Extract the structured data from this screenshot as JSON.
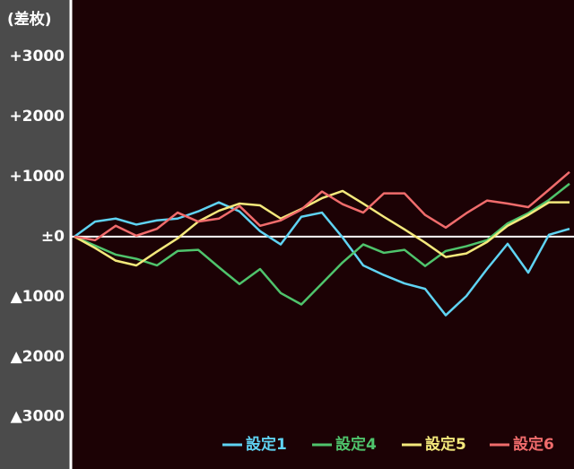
{
  "chart_data": {
    "type": "line",
    "title": "(差枚)",
    "x": [
      0,
      1,
      2,
      3,
      4,
      5,
      6,
      7,
      8,
      9,
      10,
      11,
      12,
      13,
      14,
      15,
      16,
      17,
      18,
      19,
      20,
      21,
      22,
      23,
      24
    ],
    "xlim": [
      0,
      24
    ],
    "ylim": [
      -3870,
      3940
    ],
    "yticks": [
      {
        "value": 3000,
        "label": "+3000"
      },
      {
        "value": 2000,
        "label": "+2000"
      },
      {
        "value": 1000,
        "label": "+1000"
      },
      {
        "value": 0,
        "label": "±0"
      },
      {
        "value": -1000,
        "label": "▲1000"
      },
      {
        "value": -2000,
        "label": "▲2000"
      },
      {
        "value": -3000,
        "label": "▲3000"
      }
    ],
    "series": [
      {
        "name": "設定1",
        "color": "#5fd3f3",
        "values": [
          0,
          250,
          300,
          200,
          270,
          300,
          420,
          570,
          420,
          90,
          -130,
          330,
          400,
          -15,
          -480,
          -640,
          -780,
          -870,
          -1310,
          -990,
          -540,
          -120,
          -600,
          30,
          130
        ]
      },
      {
        "name": "設定4",
        "color": "#4fc46c",
        "values": [
          0,
          -150,
          -300,
          -370,
          -480,
          -240,
          -220,
          -510,
          -790,
          -540,
          -940,
          -1130,
          -780,
          -430,
          -130,
          -270,
          -220,
          -490,
          -240,
          -160,
          -60,
          220,
          390,
          610,
          880
        ]
      },
      {
        "name": "設定5",
        "color": "#f4e97c",
        "values": [
          0,
          -190,
          -400,
          -480,
          -250,
          -30,
          250,
          430,
          550,
          520,
          300,
          460,
          640,
          760,
          550,
          330,
          120,
          -100,
          -340,
          -280,
          -90,
          180,
          360,
          570,
          570
        ]
      },
      {
        "name": "設定6",
        "color": "#f06c6c",
        "values": [
          0,
          -60,
          180,
          15,
          130,
          400,
          250,
          300,
          510,
          180,
          270,
          450,
          750,
          540,
          400,
          720,
          720,
          360,
          150,
          390,
          600,
          550,
          490,
          780,
          1075
        ]
      }
    ]
  }
}
